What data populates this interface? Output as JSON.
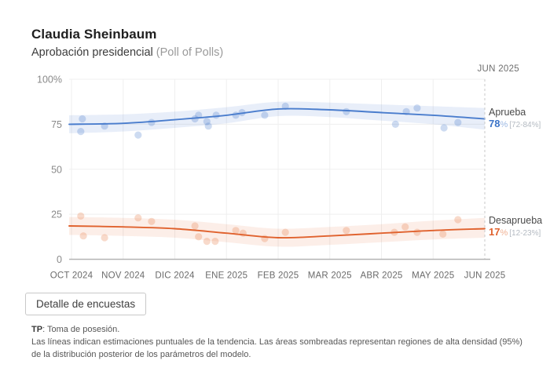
{
  "header": {
    "title": "Claudia Sheinbaum",
    "subtitle": "Aprobación presidencial",
    "subtitle_note": "(Poll of Polls)"
  },
  "annotations": {
    "current_month_label": "JUN 2025"
  },
  "chart_data": {
    "type": "line",
    "title": "Aprobación presidencial (Poll of Polls) — Claudia Sheinbaum",
    "categories": [
      "OCT 2024",
      "NOV 2024",
      "DIC 2024",
      "ENE 2025",
      "FEB 2025",
      "MAR 2025",
      "ABR 2025",
      "MAY 2025",
      "JUN 2025"
    ],
    "ylim": [
      0,
      100
    ],
    "y_ticks": [
      {
        "value": 100,
        "label": "100%"
      },
      {
        "value": 75,
        "label": "75"
      },
      {
        "value": 50,
        "label": "50"
      },
      {
        "value": 25,
        "label": "25"
      },
      {
        "value": 0,
        "label": "0"
      }
    ],
    "grid": true,
    "legend_position": "right-end-labels",
    "series": [
      {
        "name": "Aprueba",
        "values": [
          75,
          75.5,
          77.5,
          80,
          83.5,
          83,
          81.5,
          80,
          78
        ],
        "band_upper": [
          80,
          80.5,
          82,
          84.5,
          87.5,
          87,
          86,
          85,
          84
        ],
        "band_lower": [
          70,
          71,
          73,
          75.5,
          79.5,
          79,
          77,
          75,
          72
        ],
        "end_value_label": "78",
        "end_pct_sign": "%",
        "end_interval_label": "[72-84%]",
        "color": "#4a7dcd",
        "band_color": "rgba(74,125,205,0.13)",
        "point_color": "rgba(74,125,205,0.28)",
        "points": [
          [
            0.18,
            71
          ],
          [
            0.21,
            78
          ],
          [
            0.64,
            74
          ],
          [
            1.29,
            69
          ],
          [
            1.55,
            76
          ],
          [
            2.39,
            78
          ],
          [
            2.46,
            80
          ],
          [
            2.62,
            76.5
          ],
          [
            2.65,
            74
          ],
          [
            2.8,
            80
          ],
          [
            3.18,
            80
          ],
          [
            3.3,
            81.5
          ],
          [
            3.74,
            80
          ],
          [
            4.14,
            85
          ],
          [
            5.32,
            82
          ],
          [
            6.27,
            75
          ],
          [
            6.48,
            82
          ],
          [
            6.69,
            84
          ],
          [
            7.21,
            73
          ],
          [
            7.48,
            76
          ]
        ]
      },
      {
        "name": "Desaprueba",
        "values": [
          18.5,
          18,
          17,
          14.5,
          12,
          13,
          14.5,
          16,
          17
        ],
        "band_upper": [
          23.5,
          23,
          22,
          19.5,
          17,
          18,
          19.5,
          21.5,
          23
        ],
        "band_lower": [
          13.5,
          13,
          12,
          9.5,
          7,
          8,
          9.5,
          11,
          12
        ],
        "end_value_label": "17",
        "end_pct_sign": "%",
        "end_interval_label": "[12-23%]",
        "color": "#e0622e",
        "band_color": "rgba(224,98,46,0.11)",
        "point_color": "rgba(232,132,82,0.30)",
        "points": [
          [
            0.18,
            24
          ],
          [
            0.23,
            13
          ],
          [
            0.64,
            12
          ],
          [
            1.29,
            23
          ],
          [
            1.55,
            21
          ],
          [
            2.39,
            18.5
          ],
          [
            2.46,
            12.5
          ],
          [
            2.62,
            10
          ],
          [
            2.78,
            10
          ],
          [
            3.18,
            16
          ],
          [
            3.32,
            14.5
          ],
          [
            3.74,
            11.5
          ],
          [
            4.14,
            15
          ],
          [
            5.32,
            16
          ],
          [
            6.25,
            15
          ],
          [
            6.46,
            18
          ],
          [
            6.69,
            15
          ],
          [
            7.19,
            14
          ],
          [
            7.48,
            22
          ]
        ]
      }
    ],
    "colors": {
      "grid": "#efefef",
      "axis_line": "#b4b4b4",
      "dashed_line": "#c8c8c8",
      "x_tick_label": "#6b6b6b",
      "y_tick_label": "#8a8a8a"
    }
  },
  "footer": {
    "button_label": "Detalle de encuestas"
  },
  "footnote": {
    "term": "TP",
    "term_def": ": Toma de posesión.",
    "body": "Las líneas indican estimaciones puntuales de la tendencia. Las áreas sombreadas representan regiones de alta densidad (95%) de la distribución posterior de los parámetros del modelo."
  }
}
